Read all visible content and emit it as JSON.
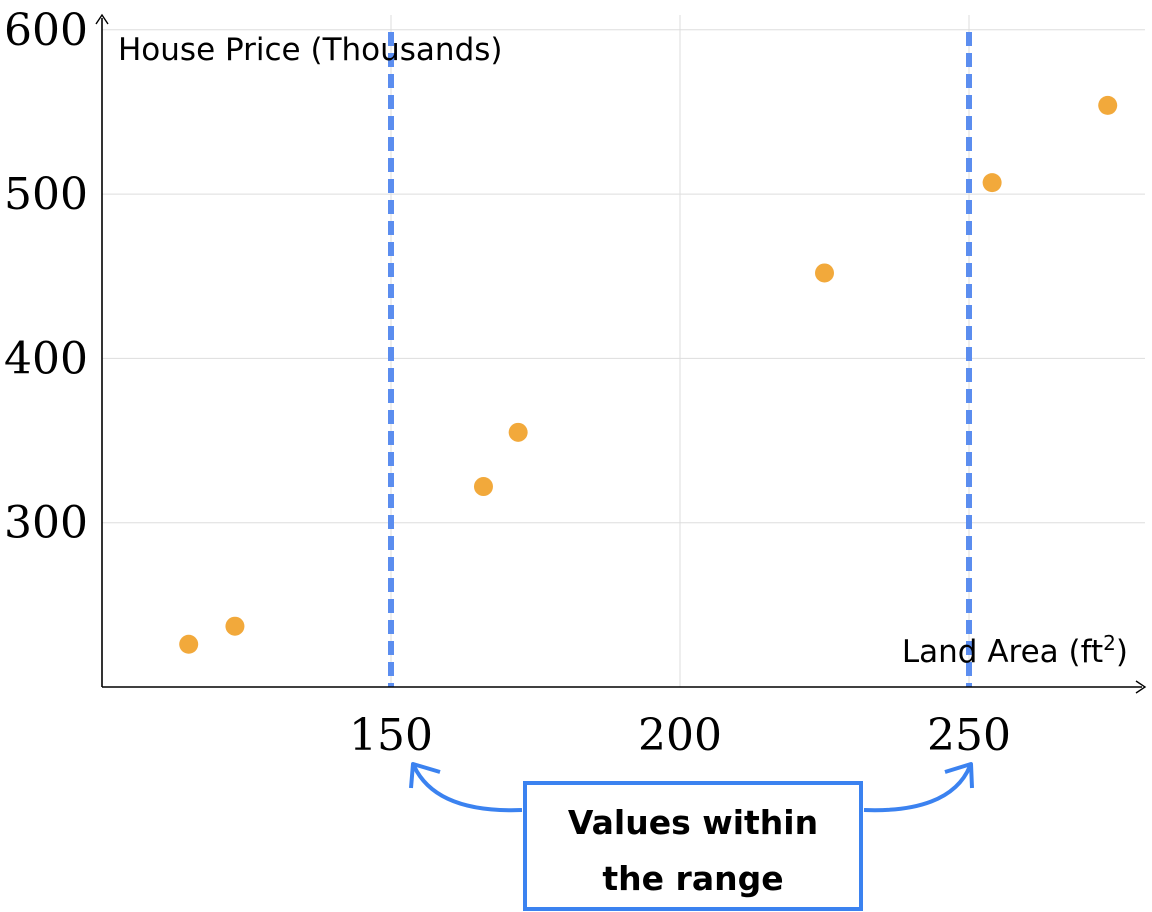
{
  "chart_data": {
    "type": "scatter",
    "title": "",
    "xlabel": "Land Area (ft",
    "xlabel_sup": "2",
    "xlabel_close": ")",
    "ylabel": "House Price (Thousands)",
    "xlim": [
      100,
      280
    ],
    "ylim": [
      200,
      609
    ],
    "xticks": [
      150,
      200,
      250
    ],
    "yticks": [
      300,
      400,
      500,
      600
    ],
    "grid": true,
    "points": [
      {
        "x": 115,
        "y": 226
      },
      {
        "x": 123,
        "y": 237
      },
      {
        "x": 166,
        "y": 322
      },
      {
        "x": 172,
        "y": 355
      },
      {
        "x": 225,
        "y": 452
      },
      {
        "x": 254,
        "y": 507
      },
      {
        "x": 274,
        "y": 554
      }
    ],
    "reference_lines": [
      150,
      250
    ],
    "annotation": {
      "line1": "Values within",
      "line2": "the range"
    },
    "colors": {
      "points": "#f2a93b",
      "reference": "#5b8def",
      "annotation": "#3b82f0",
      "grid": "#dddddd"
    }
  }
}
